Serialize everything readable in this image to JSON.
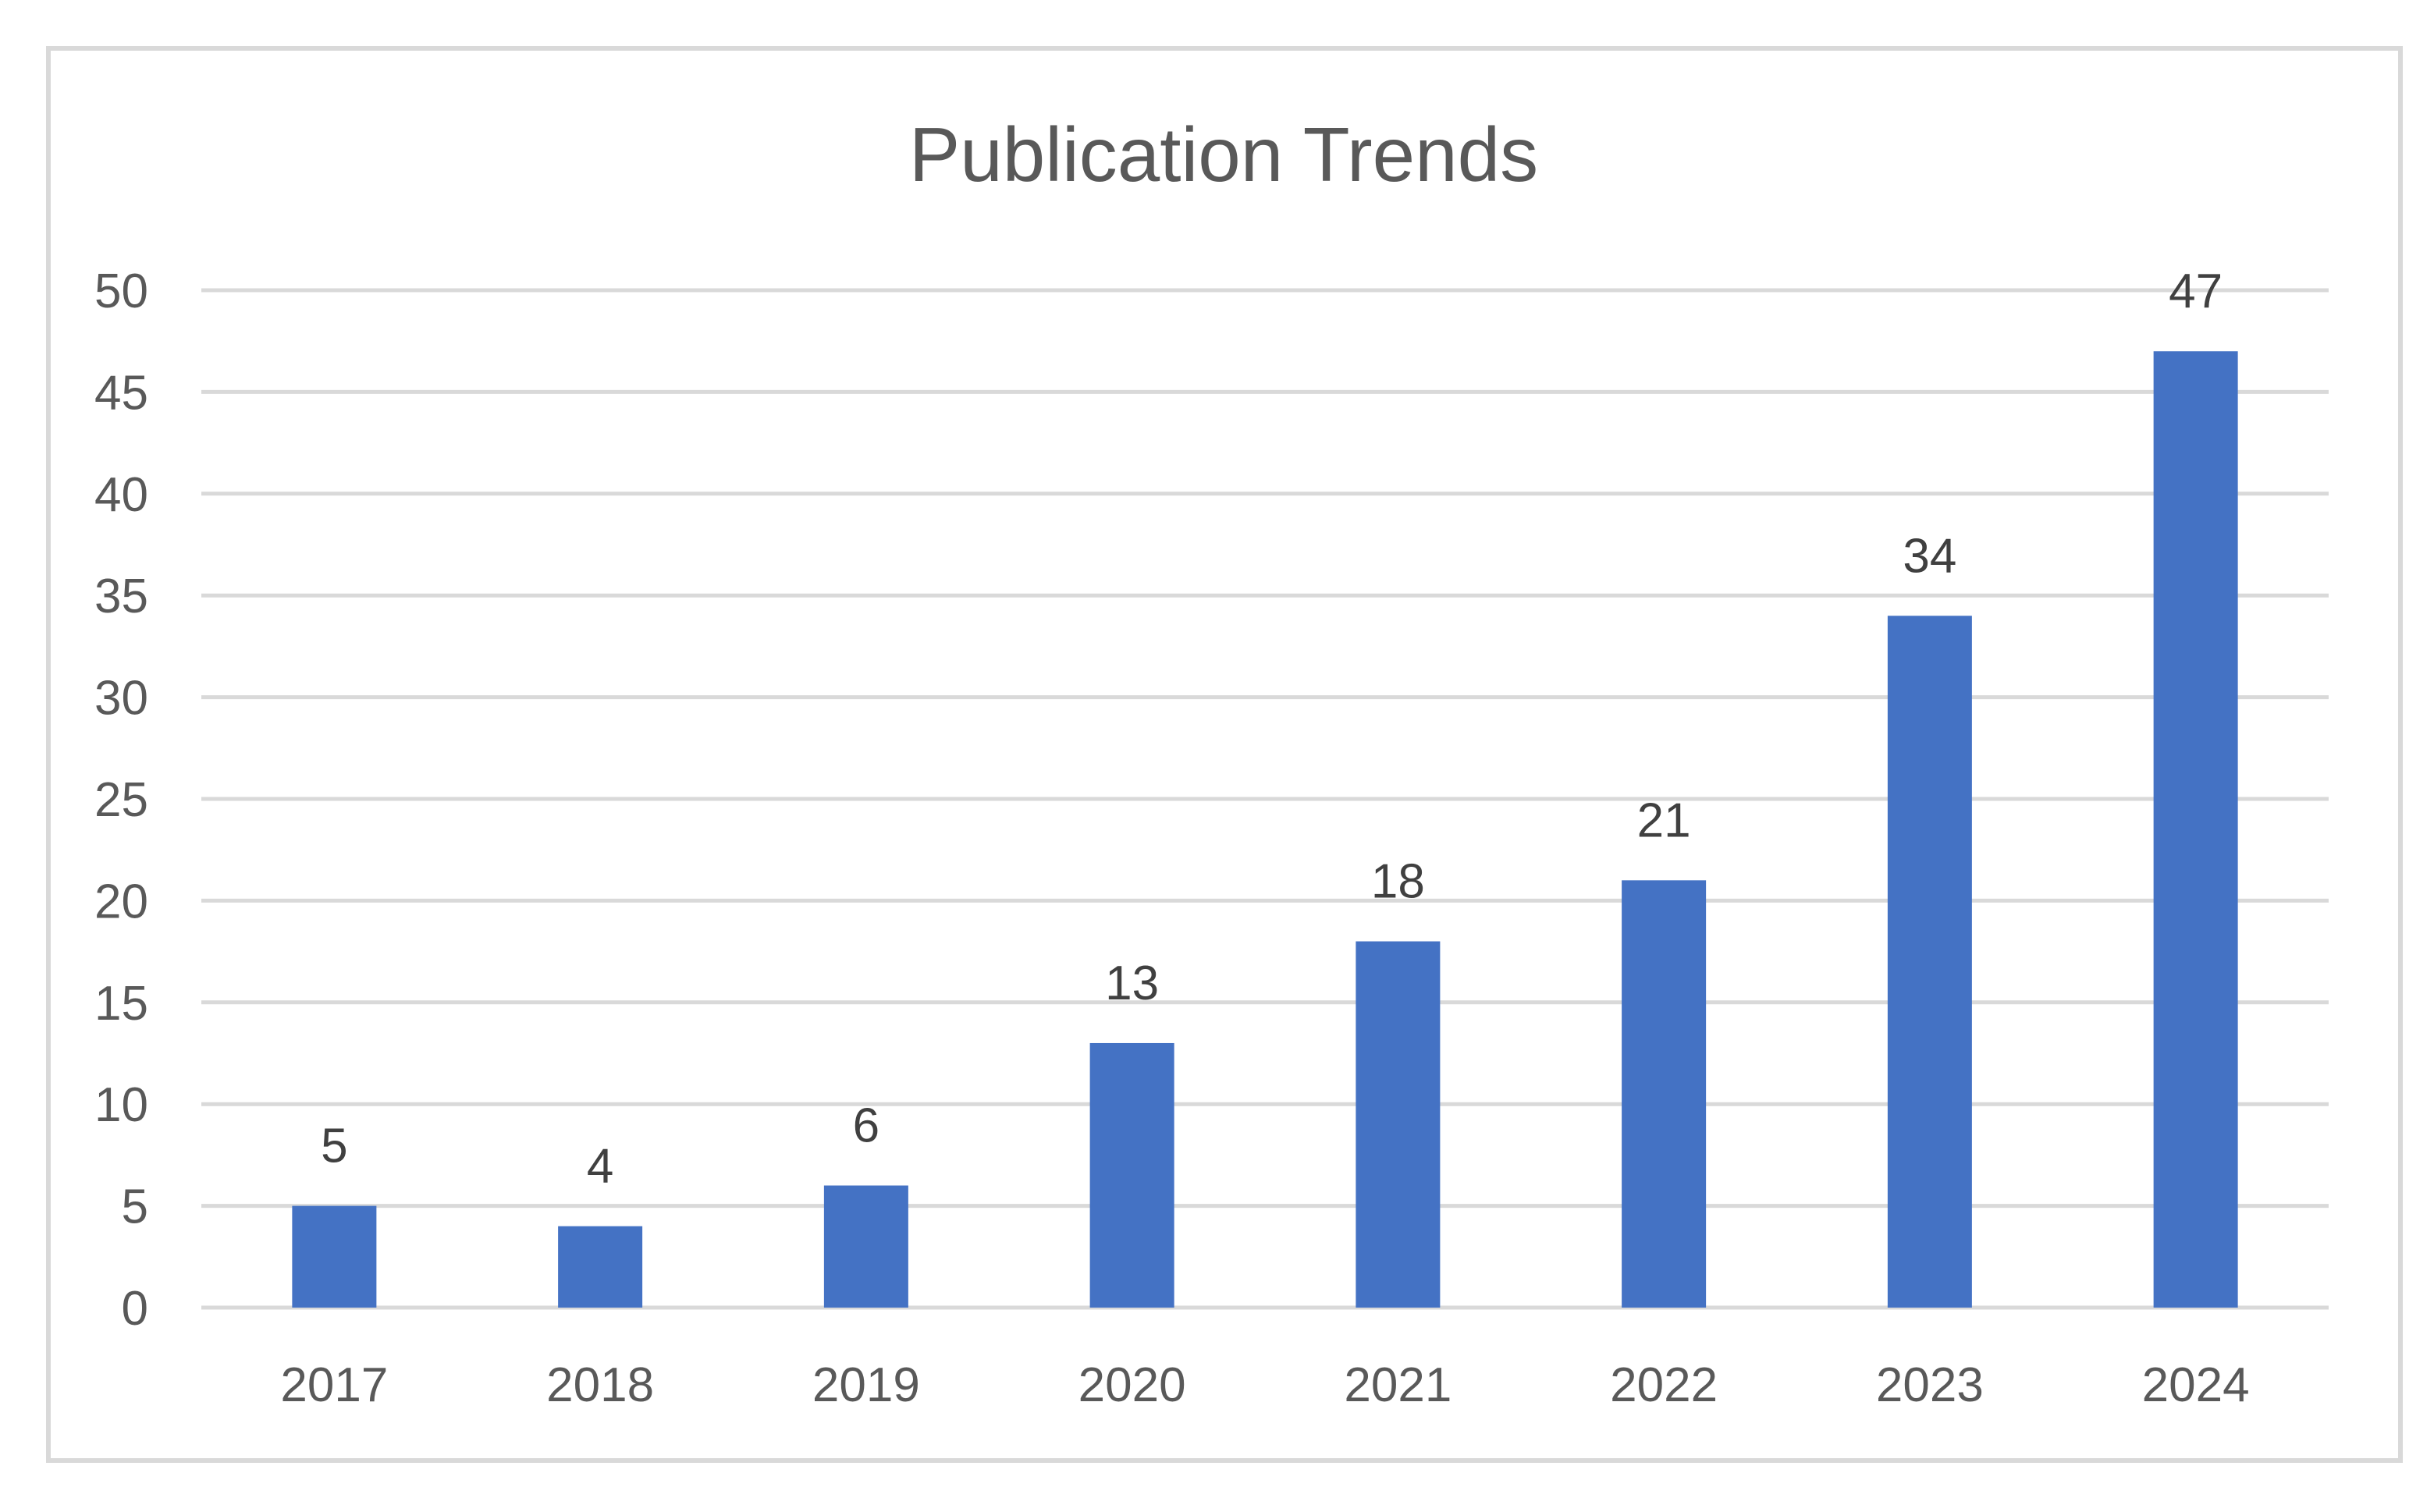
{
  "chart_data": {
    "type": "bar",
    "title": "Publication Trends",
    "xlabel": "",
    "ylabel": "",
    "categories": [
      "2017",
      "2018",
      "2019",
      "2020",
      "2021",
      "2022",
      "2023",
      "2024"
    ],
    "series": [
      {
        "values": [
          5,
          4,
          6,
          13,
          18,
          21,
          34,
          47
        ]
      }
    ],
    "ylim": [
      0,
      50
    ],
    "yticks": [
      0,
      5,
      10,
      15,
      20,
      25,
      30,
      35,
      40,
      45,
      50
    ],
    "grid": true,
    "legend": "none",
    "data_labels": true
  },
  "colors": {
    "bar": "#4472C4",
    "grid": "#D9D9D9",
    "text": "#595959",
    "label_text": "#404040",
    "frame": "#D9D9D9",
    "background": "#FFFFFF"
  }
}
